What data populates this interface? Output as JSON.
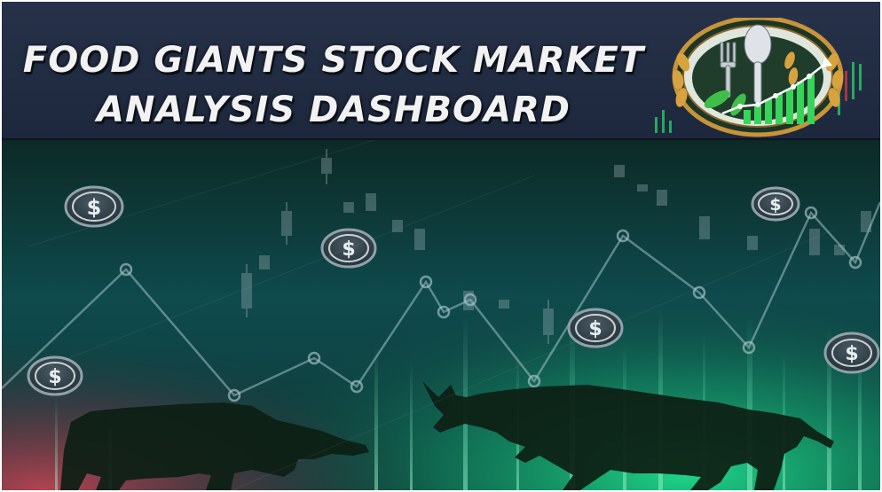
{
  "header": {
    "title_line1": "FOOD GIANTS STOCK MARKET",
    "title_line2": "ANALYSIS DASHBOARD"
  },
  "logo": {
    "icons": [
      "fork-icon",
      "spoon-icon",
      "wheat-icon",
      "leaf-icon",
      "rising-bar-chart-icon"
    ]
  },
  "hero": {
    "icons": [
      "dollar-coin-icon",
      "bear-silhouette",
      "bull-silhouette",
      "line-chart-graphic",
      "candlestick-graphic"
    ],
    "colors": {
      "bg_top": "#0c2a25",
      "bg_mid": "#0f5250",
      "glow_green": "#19d38a",
      "glow_red": "#b23a4a",
      "silhouette": "#0d1f14"
    }
  }
}
